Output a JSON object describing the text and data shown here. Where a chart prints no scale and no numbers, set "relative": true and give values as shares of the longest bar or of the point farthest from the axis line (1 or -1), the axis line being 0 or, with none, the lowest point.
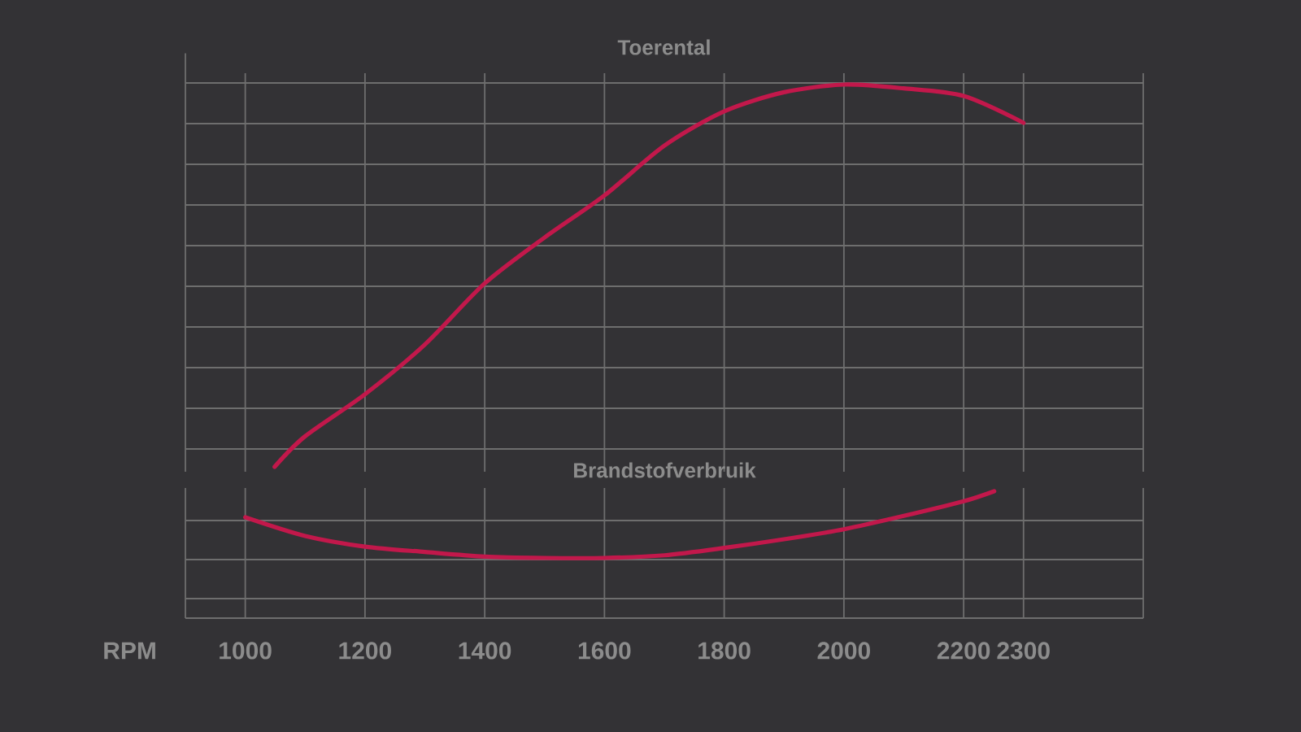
{
  "chart_data": [
    {
      "type": "line",
      "title": "Toerental",
      "relative": true,
      "color": "#c2184b",
      "line_style": "solid",
      "grid": true,
      "tick_labels": false,
      "xlim": [
        900,
        2500
      ],
      "xticks": [
        1000,
        1200,
        1400,
        1600,
        1800,
        2000,
        2200,
        2300
      ],
      "x": [
        1049,
        1100,
        1200,
        1300,
        1400,
        1500,
        1600,
        1700,
        1800,
        1900,
        2000,
        2100,
        2200,
        2300
      ],
      "values": [
        0,
        0.08,
        0.19,
        0.32,
        0.48,
        0.6,
        0.71,
        0.84,
        0.93,
        0.98,
        1,
        0.99,
        0.97,
        0.9
      ]
    },
    {
      "type": "line",
      "title": "Brandstofverbruik",
      "xlabel": "RPM",
      "relative": true,
      "color": "#c2184b",
      "line_style": "solid",
      "grid": true,
      "tick_labels": "x",
      "xlim": [
        900,
        2500
      ],
      "xticks": [
        1000,
        1200,
        1400,
        1600,
        1800,
        2000,
        2200,
        2300
      ],
      "x": [
        1000,
        1100,
        1200,
        1300,
        1400,
        1500,
        1600,
        1700,
        1800,
        1900,
        2000,
        2100,
        2200,
        2251
      ],
      "values": [
        0.61,
        0.33,
        0.17,
        0.09,
        0.02,
        0,
        0,
        0.04,
        0.15,
        0.28,
        0.43,
        0.63,
        0.85,
        1
      ]
    }
  ]
}
